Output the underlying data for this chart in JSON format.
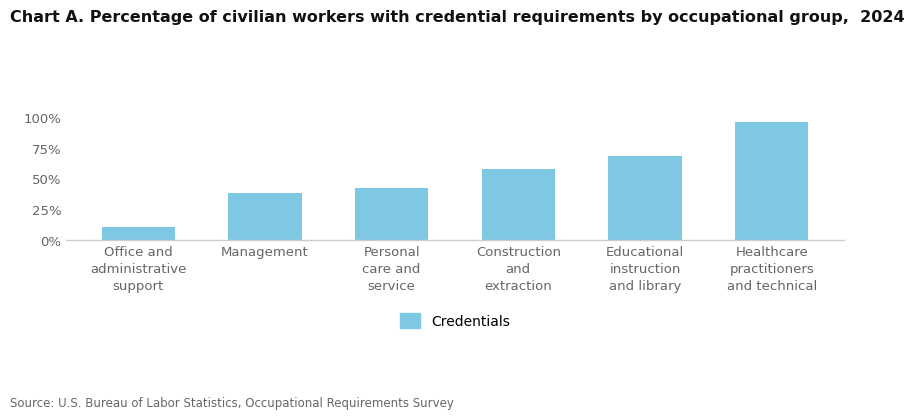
{
  "title": "Chart A. Percentage of civilian workers with credential requirements by occupational group,  2024",
  "categories": [
    "Office and\nadministrative\nsupport",
    "Management",
    "Personal\ncare and\nservice",
    "Construction\nand\nextraction",
    "Educational\ninstruction\nand library",
    "Healthcare\npractitioners\nand technical"
  ],
  "values": [
    10,
    38,
    42,
    58,
    68,
    96
  ],
  "bar_color": "#7EC8E3",
  "ylim": [
    0,
    100
  ],
  "yticks": [
    0,
    25,
    50,
    75,
    100
  ],
  "ytick_labels": [
    "0%",
    "25%",
    "50%",
    "75%",
    "100%"
  ],
  "legend_label": "Credentials",
  "source_text": "Source: U.S. Bureau of Labor Statistics, Occupational Requirements Survey",
  "background_color": "#ffffff",
  "title_fontsize": 11.5,
  "tick_fontsize": 9.5,
  "source_fontsize": 8.5,
  "legend_fontsize": 10,
  "spine_color": "#cccccc"
}
